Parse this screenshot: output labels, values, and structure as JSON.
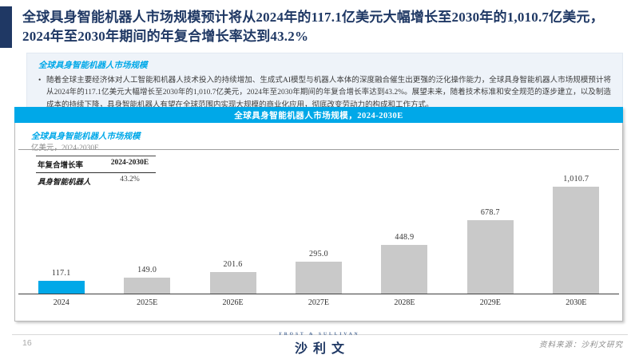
{
  "page": {
    "title": "全球具身智能机器人市场规模预计将从2024年的117.1亿美元大幅增长至2030年的1,010.7亿美元，2024年至2030年期间的年复合增长率达到43.2%",
    "number": "16"
  },
  "summary": {
    "heading": "全球具身智能机器人市场规模",
    "bullet": "随着全球主要经济体对人工智能和机器人技术投入的持续增加、生成式AI模型与机器人本体的深度融合催生出更强的泛化操作能力，全球具身智能机器人市场规模预计将从2024年的117.1亿美元大幅增长至2030年的1,010.7亿美元，2024年至2030年期间的年复合增长率达到43.2%。展望未来，随着技术标准和安全规范的逐步建立，以及制造成本的持续下降，具身智能机器人有望在全球范围内实现大规模的商业化应用，彻底改变劳动力的构成和工作方式。"
  },
  "banner": {
    "label": "全球具身智能机器人市场规模，2024-2030E"
  },
  "chart": {
    "title": "全球具身智能机器人市场规模",
    "subtitle": "亿美元，2024-2030E",
    "cagr_table": {
      "header": [
        "年复合增长率",
        "2024-2030E"
      ],
      "row": [
        "具身智能机器人",
        "43.2%"
      ]
    }
  },
  "chart_data": {
    "type": "bar",
    "title": "全球具身智能机器人市场规模，2024-2030E",
    "ylabel": "亿美元",
    "xlabel": "",
    "categories": [
      "2024",
      "2025E",
      "2026E",
      "2027E",
      "2028E",
      "2029E",
      "2030E"
    ],
    "values": [
      117.1,
      149.0,
      201.6,
      295.0,
      448.9,
      678.7,
      1010.7
    ],
    "value_labels": [
      "117.1",
      "149.0",
      "201.6",
      "295.0",
      "448.9",
      "678.7",
      "1,010.7"
    ],
    "ylim": [
      0,
      1100
    ],
    "grid": false,
    "legend": "none",
    "highlight_index": 0,
    "highlight_color": "#00a8e8",
    "bar_color": "#c9c9c9",
    "cagr_2024_2030": "43.2%"
  },
  "footer": {
    "logo_top": "FROST & SULLIVAN",
    "logo_main": "沙利文",
    "source": "资料来源：沙利文研究"
  },
  "colors": {
    "accent_cyan": "#00a8e8",
    "navy": "#1f3864",
    "bar_gray": "#c9c9c9",
    "info_box_bg": "#eef3f9"
  }
}
